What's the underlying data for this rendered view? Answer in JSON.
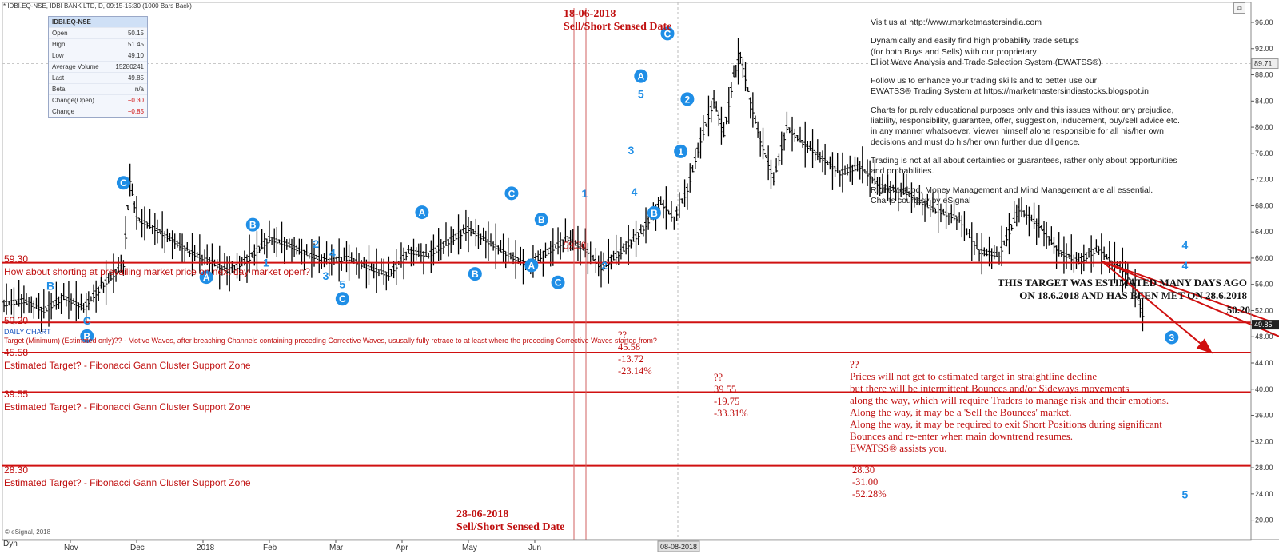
{
  "header": {
    "title": "* IDBI.EQ-NSE, IDBI BANK LTD, D, 09:15-15:30 (1000 Bars Back)",
    "dyn_label": "Dyn",
    "esignal": "© eSignal, 2018"
  },
  "quote_box": {
    "symbol": "IDBI.EQ-NSE",
    "rows": [
      {
        "label": "Open",
        "value": "50.15",
        "neg": false
      },
      {
        "label": "High",
        "value": "51.45",
        "neg": false
      },
      {
        "label": "Low",
        "value": "49.10",
        "neg": false
      },
      {
        "label": "Average Volume",
        "value": "15280241",
        "neg": false
      },
      {
        "label": "Last",
        "value": "49.85",
        "neg": false
      },
      {
        "label": "Beta",
        "value": "n/a",
        "neg": false
      },
      {
        "label": "Change(Open)",
        "value": "−0.30",
        "neg": true
      },
      {
        "label": "Change",
        "value": "−0.85",
        "neg": true
      }
    ]
  },
  "info_text": [
    "Visit us at http://www.marketmastersindia.com",
    "Dynamically and easily find high probability trade setups\n(for both Buys and Sells) with our proprietary\nElliot Wave Analysis and Trade Selection System (EWATSS®)",
    "Follow us to enhance your trading skills and to better use our\nEWATSS® Trading System at https://marketmastersindiastocks.blogspot.in",
    "Charts for purely educational purposes only and this issues without any prejudice,\nliability, responsibility, guarantee, offer, suggestion, inducement, buy/sell advice etc.\nin any manner whatsoever. Viewer himself alone responsible for all his/her own\ndecisions and must do his/her own further due diligence.",
    "Trading is not at all about certainties or guarantees, rather only about opportunities\nand probabilities.",
    "Right Method, Money Management and Mind Management are all essential.\nCharts courtesy by eSignal"
  ],
  "annotations": {
    "date_top": "18-06-2018",
    "date_top_sub": "Sell/Short Sensed Date",
    "date_bottom": "28-06-2018",
    "date_bottom_sub": "Sell/Short Sensed Date",
    "level_5930": "59.30",
    "question": "How about shorting at prevailing market price on next day market open?",
    "level_5020": "50.20",
    "daily_chart": "DAILY CHART",
    "target_note": "Target (Minimum) (Estimated only)?? - Motive Waves, after breaching Channels containing preceding Corrective Waves, ususally fully retrace to at least where the preceding Corrective Waves started from?",
    "level_4558": "45.58",
    "level_3955": "39.55",
    "level_2830": "28.30",
    "zone_label": "Estimated Target? - Fibonacci Gann Cluster Support Zone",
    "right_5930": "59.30",
    "right_5020": "50.20",
    "met_note": "THIS TARGET WAS ESTIMATED MANY DAYS AGO\nON 18.6.2018 AND HAS BEEN MET ON 28.6.2018",
    "t1": "??\n45.58\n-13.72\n-23.14%",
    "t2": "??\n39.55\n-19.75\n-33.31%",
    "t3": "28.30\n-31.00\n-52.28%",
    "warning": "??\nPrices will not get to estimated target in straightline decline\nbut there will be intermittent Bounces and/or Sideways movements\nalong the way, which will require Traders to manage risk and their emotions.\nAlong the way, it may be a 'Sell the Bounces' market.\nAlong the way, it may be required to exit Short Positions during significant\nBounces and re-enter when main downtrend resumes.\nEWATSS® assists you."
  },
  "colors": {
    "bar": "#000000",
    "level_line": "#d01010",
    "arrow": "#d01010",
    "wave_label": "#1f8ee6",
    "last_price_tag": "#202020"
  },
  "chart_data": {
    "type": "ohlc",
    "ylim": [
      18,
      96
    ],
    "y_ticks": [
      20,
      24,
      28,
      32,
      36,
      40,
      44,
      48,
      52,
      56,
      60,
      64,
      68,
      72,
      76,
      80,
      84,
      88,
      92,
      96
    ],
    "y_tick_labels": [
      "20.00",
      "24.00",
      "28.00",
      "32.00",
      "36.00",
      "40.00",
      "44.00",
      "48.00",
      "52.00",
      "56.00",
      "60.00",
      "64.00",
      "68.00",
      "72.00",
      "76.00",
      "80.00",
      "84.00",
      "88.00",
      "92.00",
      "96.00"
    ],
    "x_labels": [
      "Nov",
      "Dec",
      "2018",
      "Feb",
      "Mar",
      "Apr",
      "May",
      "Jun"
    ],
    "x_label_months": [
      1,
      2,
      3,
      4,
      5,
      6,
      7,
      8
    ],
    "x_end_label": "08-08-2018",
    "max_marker": "89.71",
    "last_price": "49.85",
    "last_value": 49.85,
    "levels": [
      59.3,
      50.2,
      45.58,
      39.55,
      28.3
    ],
    "prices": [
      [
        0.0,
        53.0
      ],
      [
        0.3,
        53.5
      ],
      [
        0.6,
        52.0
      ],
      [
        0.9,
        54.0
      ],
      [
        1.2,
        52.5
      ],
      [
        1.5,
        56.0
      ],
      [
        1.8,
        59.0
      ],
      [
        1.9,
        72.0
      ],
      [
        2.0,
        66.0
      ],
      [
        2.2,
        65.0
      ],
      [
        2.5,
        63.0
      ],
      [
        2.8,
        61.0
      ],
      [
        3.1,
        59.5
      ],
      [
        3.4,
        58.0
      ],
      [
        3.7,
        60.0
      ],
      [
        4.0,
        63.0
      ],
      [
        4.3,
        62.0
      ],
      [
        4.6,
        60.5
      ],
      [
        4.9,
        59.5
      ],
      [
        5.2,
        60.0
      ],
      [
        5.5,
        58.5
      ],
      [
        5.8,
        57.5
      ],
      [
        6.1,
        61.0
      ],
      [
        6.4,
        60.5
      ],
      [
        6.7,
        62.5
      ],
      [
        7.0,
        64.5
      ],
      [
        7.3,
        62.5
      ],
      [
        7.6,
        60.5
      ],
      [
        7.9,
        59.0
      ],
      [
        8.2,
        61.0
      ],
      [
        8.5,
        63.0
      ],
      [
        8.8,
        61.0
      ],
      [
        9.0,
        58.5
      ],
      [
        9.3,
        61.0
      ],
      [
        9.6,
        64.0
      ],
      [
        9.9,
        68.5
      ],
      [
        10.1,
        66.0
      ],
      [
        10.3,
        70.5
      ],
      [
        10.5,
        78.0
      ],
      [
        10.7,
        84.0
      ],
      [
        10.85,
        79.0
      ],
      [
        11.0,
        88.0
      ],
      [
        11.1,
        91.0
      ],
      [
        11.25,
        84.0
      ],
      [
        11.4,
        78.0
      ],
      [
        11.6,
        72.0
      ],
      [
        11.8,
        80.0
      ],
      [
        12.0,
        78.0
      ],
      [
        12.3,
        75.5
      ],
      [
        12.6,
        73.0
      ],
      [
        12.9,
        74.0
      ],
      [
        13.2,
        71.0
      ],
      [
        13.6,
        70.0
      ],
      [
        14.0,
        67.5
      ],
      [
        14.4,
        66.0
      ],
      [
        14.7,
        61.0
      ],
      [
        15.0,
        60.5
      ],
      [
        15.3,
        67.5
      ],
      [
        15.6,
        65.0
      ],
      [
        15.9,
        61.0
      ],
      [
        16.2,
        59.5
      ],
      [
        16.5,
        61.5
      ],
      [
        16.7,
        59.3
      ],
      [
        16.9,
        58.0
      ],
      [
        17.05,
        55.0
      ],
      [
        17.2,
        50.2
      ]
    ],
    "arrows": [
      {
        "from": [
          16.55,
          59.5
        ],
        "to": [
          18.2,
          45.58
        ]
      },
      {
        "from": [
          16.55,
          59.5
        ],
        "to": [
          21.2,
          39.55
        ]
      },
      {
        "from": [
          16.55,
          59.5
        ],
        "to": [
          25.2,
          28.3
        ]
      }
    ],
    "wave_labels": [
      {
        "t": "C",
        "m": 1.8,
        "v": 71.5,
        "c": true
      },
      {
        "t": "B",
        "m": 3.75,
        "v": 65.1,
        "c": true
      },
      {
        "t": "1",
        "m": 3.95,
        "v": 59.3,
        "c": false
      },
      {
        "t": "2",
        "m": 4.7,
        "v": 62.2,
        "c": false
      },
      {
        "t": "4",
        "m": 4.95,
        "v": 60.8,
        "c": false
      },
      {
        "t": "3",
        "m": 4.85,
        "v": 57.3,
        "c": false
      },
      {
        "t": "5",
        "m": 5.1,
        "v": 56.0,
        "c": false
      },
      {
        "t": "C",
        "m": 5.1,
        "v": 53.8,
        "c": true
      },
      {
        "t": "A",
        "m": 3.05,
        "v": 57.1,
        "c": true
      },
      {
        "t": "A",
        "m": 6.3,
        "v": 67.0,
        "c": true
      },
      {
        "t": "C",
        "m": 7.65,
        "v": 69.9,
        "c": true
      },
      {
        "t": "B",
        "m": 7.1,
        "v": 57.6,
        "c": true
      },
      {
        "t": "B",
        "m": 8.1,
        "v": 65.9,
        "c": true
      },
      {
        "t": "A",
        "m": 7.95,
        "v": 58.9,
        "c": true
      },
      {
        "t": "C",
        "m": 8.35,
        "v": 56.3,
        "c": true
      },
      {
        "t": "2",
        "m": 9.05,
        "v": 58.9,
        "c": false
      },
      {
        "t": "1",
        "m": 8.75,
        "v": 69.9,
        "c": false
      },
      {
        "t": "3",
        "m": 9.45,
        "v": 76.5,
        "c": false
      },
      {
        "t": "4",
        "m": 9.5,
        "v": 70.1,
        "c": false
      },
      {
        "t": "5",
        "m": 9.6,
        "v": 85.1,
        "c": false
      },
      {
        "t": "A",
        "m": 9.6,
        "v": 87.8,
        "c": true
      },
      {
        "t": "B",
        "m": 9.8,
        "v": 66.9,
        "c": true
      },
      {
        "t": "C",
        "m": 10.0,
        "v": 94.3,
        "c": true
      },
      {
        "t": "2",
        "m": 10.3,
        "v": 84.3,
        "c": true
      },
      {
        "t": "1",
        "m": 10.2,
        "v": 76.3,
        "c": true
      },
      {
        "t": "3",
        "m": 17.6,
        "v": 47.9,
        "c": true
      },
      {
        "t": "4",
        "m": 17.8,
        "v": 62.0,
        "c": false
      },
      {
        "t": "4",
        "m": 17.8,
        "v": 58.9,
        "c": false
      },
      {
        "t": "5",
        "m": 17.8,
        "v": 23.9,
        "c": false
      },
      {
        "t": "B",
        "m": 0.7,
        "v": 55.8,
        "c": false
      },
      {
        "t": "C",
        "m": 1.25,
        "v": 50.5,
        "c": false
      },
      {
        "t": "B",
        "m": 1.25,
        "v": 48.1,
        "c": true
      }
    ]
  }
}
